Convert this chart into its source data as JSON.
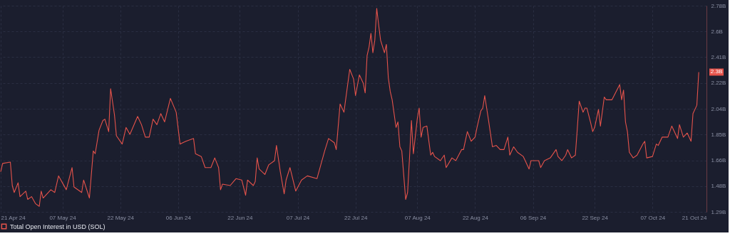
{
  "chart_data": {
    "type": "line",
    "x": [
      "2024-04-21",
      "2024-04-21T12:00",
      "2024-04-23T12:00",
      "2024-04-24",
      "2024-04-24T12:00",
      "2024-04-25T12:00",
      "2024-04-26",
      "2024-04-27T12:00",
      "2024-04-28",
      "2024-04-29",
      "2024-04-30",
      "2024-05-01",
      "2024-05-01T12:00",
      "2024-05-02",
      "2024-05-04",
      "2024-05-05",
      "2024-05-06",
      "2024-05-07",
      "2024-05-08",
      "2024-05-09T12:00",
      "2024-05-10",
      "2024-05-12",
      "2024-05-12T12:00",
      "2024-05-14",
      "2024-05-15",
      "2024-05-15T12:00",
      "2024-05-16T12:00",
      "2024-05-17T12:00",
      "2024-05-18",
      "2024-05-19",
      "2024-05-19T12:00",
      "2024-05-20T12:00",
      "2024-05-21",
      "2024-05-22T12:00",
      "2024-05-23T12:00",
      "2024-05-24T12:00",
      "2024-05-26T12:00",
      "2024-05-27T12:00",
      "2024-05-28T12:00",
      "2024-05-29T12:00",
      "2024-05-30T12:00",
      "2024-05-31T12:00",
      "2024-06-01T12:00",
      "2024-06-02T12:00",
      "2024-06-04",
      "2024-06-05T12:00",
      "2024-06-06T12:00",
      "2024-06-08",
      "2024-06-10",
      "2024-06-10T12:00",
      "2024-06-12",
      "2024-06-13",
      "2024-06-14T12:00",
      "2024-06-15T12:00",
      "2024-06-16T12:00",
      "2024-06-17",
      "2024-06-17T12:00",
      "2024-06-19T12:00",
      "2024-06-21",
      "2024-06-22T12:00",
      "2024-06-23T12:00",
      "2024-06-24",
      "2024-06-25T12:00",
      "2024-06-26",
      "2024-06-26T12:00",
      "2024-06-27",
      "2024-06-28T12:00",
      "2024-06-29T12:00",
      "2024-07-01",
      "2024-07-01T12:00",
      "2024-07-02T12:00",
      "2024-07-03T12:00",
      "2024-07-04",
      "2024-07-05",
      "2024-07-06T12:00",
      "2024-07-08",
      "2024-07-09T12:00",
      "2024-07-12",
      "2024-07-13",
      "2024-07-14",
      "2024-07-15",
      "2024-07-16T12:00",
      "2024-07-17",
      "2024-07-18",
      "2024-07-19",
      "2024-07-20T12:00",
      "2024-07-21T12:00",
      "2024-07-22",
      "2024-07-23",
      "2024-07-24",
      "2024-07-24T12:00",
      "2024-07-25",
      "2024-07-25T12:00",
      "2024-07-26",
      "2024-07-26T12:00",
      "2024-07-27",
      "2024-07-27T12:00",
      "2024-07-28",
      "2024-07-28T12:00",
      "2024-07-29T12:00",
      "2024-07-30",
      "2024-07-30T12:00",
      "2024-07-31",
      "2024-07-31T12:00",
      "2024-08-01T12:00",
      "2024-08-02",
      "2024-08-02T12:00",
      "2024-08-03",
      "2024-08-04",
      "2024-08-04T12:00",
      "2024-08-05",
      "2024-08-05T12:00",
      "2024-08-06",
      "2024-08-07",
      "2024-08-07T12:00",
      "2024-08-08",
      "2024-08-08T12:00",
      "2024-08-09T12:00",
      "2024-08-10T12:00",
      "2024-08-11",
      "2024-08-11T12:00",
      "2024-08-13",
      "2024-08-14",
      "2024-08-14T12:00",
      "2024-08-16",
      "2024-08-17",
      "2024-08-18T12:00",
      "2024-08-19",
      "2024-08-20",
      "2024-08-21",
      "2024-08-22",
      "2024-08-22T12:00",
      "2024-08-23T12:00",
      "2024-08-24",
      "2024-08-24T12:00",
      "2024-08-25",
      "2024-08-25T12:00",
      "2024-08-26T12:00",
      "2024-08-27T12:00",
      "2024-08-28T12:00",
      "2024-08-29T12:00",
      "2024-08-30T12:00",
      "2024-08-31",
      "2024-09-01",
      "2024-09-02",
      "2024-09-03T12:00",
      "2024-09-04",
      "2024-09-05",
      "2024-09-05T12:00",
      "2024-09-07T12:00",
      "2024-09-08",
      "2024-09-09",
      "2024-09-10T12:00",
      "2024-09-12",
      "2024-09-12T12:00",
      "2024-09-13T12:00",
      "2024-09-14T12:00",
      "2024-09-15",
      "2024-09-16",
      "2024-09-17",
      "2024-09-17T12:00",
      "2024-09-18",
      "2024-09-19",
      "2024-09-19T12:00",
      "2024-09-20",
      "2024-09-21",
      "2024-09-21T12:00",
      "2024-09-22",
      "2024-09-23",
      "2024-09-23T12:00",
      "2024-09-24T12:00",
      "2024-09-25",
      "2024-09-26T12:00",
      "2024-09-28T12:00",
      "2024-09-29",
      "2024-09-29T12:00",
      "2024-09-30",
      "2024-09-30T12:00",
      "2024-10-01",
      "2024-10-02",
      "2024-10-03",
      "2024-10-04T12:00",
      "2024-10-05",
      "2024-10-05T12:00",
      "2024-10-07",
      "2024-10-08",
      "2024-10-08T12:00",
      "2024-10-09T12:00",
      "2024-10-11",
      "2024-10-12",
      "2024-10-13T12:00",
      "2024-10-14",
      "2024-10-15",
      "2024-10-16",
      "2024-10-17",
      "2024-10-17T12:00",
      "2024-10-18T12:00",
      "2024-10-19"
    ],
    "series": [
      {
        "name": "Total Open Interest in USD (SOL)",
        "color": "#e5534b",
        "values": [
          1.58,
          1.64,
          1.65,
          1.48,
          1.43,
          1.5,
          1.4,
          1.44,
          1.38,
          1.4,
          1.35,
          1.33,
          1.44,
          1.39,
          1.45,
          1.43,
          1.55,
          1.5,
          1.45,
          1.61,
          1.47,
          1.43,
          1.52,
          1.39,
          1.73,
          1.71,
          1.88,
          1.95,
          1.96,
          1.87,
          2.18,
          1.99,
          1.84,
          1.78,
          1.9,
          1.85,
          1.98,
          1.92,
          1.83,
          1.83,
          1.96,
          1.92,
          2.0,
          1.94,
          2.11,
          2.01,
          1.78,
          1.8,
          1.82,
          1.71,
          1.69,
          1.61,
          1.61,
          1.68,
          1.61,
          1.45,
          1.49,
          1.48,
          1.53,
          1.52,
          1.41,
          1.52,
          1.48,
          1.51,
          1.68,
          1.6,
          1.56,
          1.63,
          1.66,
          1.77,
          1.58,
          1.42,
          1.52,
          1.61,
          1.44,
          1.52,
          1.55,
          1.53,
          1.63,
          1.73,
          1.82,
          1.79,
          1.74,
          2.07,
          2.01,
          2.32,
          2.25,
          2.13,
          2.28,
          2.22,
          2.15,
          2.42,
          2.48,
          2.58,
          2.44,
          2.53,
          2.76,
          2.64,
          2.53,
          2.44,
          2.5,
          2.26,
          2.16,
          2.1,
          1.9,
          1.94,
          1.76,
          1.73,
          1.38,
          1.43,
          1.68,
          1.95,
          1.71,
          1.96,
          2.04,
          1.83,
          1.9,
          1.91,
          1.7,
          1.72,
          1.69,
          1.66,
          1.7,
          1.61,
          1.68,
          1.66,
          1.74,
          1.74,
          1.87,
          1.8,
          1.83,
          1.9,
          2.02,
          2.04,
          2.13,
          2.04,
          1.95,
          1.76,
          1.77,
          1.74,
          1.74,
          1.83,
          1.7,
          1.76,
          1.72,
          1.69,
          1.66,
          1.6,
          1.66,
          1.66,
          1.61,
          1.66,
          1.68,
          1.74,
          1.69,
          1.66,
          1.7,
          1.74,
          1.68,
          1.7,
          1.89,
          2.09,
          2.01,
          2.04,
          2.04,
          1.93,
          1.87,
          1.9,
          2.03,
          1.91,
          2.12,
          2.1,
          2.1,
          2.21,
          2.1,
          2.17,
          1.94,
          1.87,
          1.72,
          1.68,
          1.7,
          1.78,
          1.8,
          1.68,
          1.69,
          1.78,
          1.77,
          1.83,
          1.83,
          1.91,
          1.82,
          1.92,
          1.83,
          1.86,
          1.8,
          2.0,
          2.06,
          2.3
        ]
      }
    ],
    "xlim": [
      "2024-04-21",
      "2024-10-21"
    ],
    "xticks": [
      {
        "value": "2024-04-21",
        "label": "21 Apr 24"
      },
      {
        "value": "2024-05-07",
        "label": "07 May 24"
      },
      {
        "value": "2024-05-22",
        "label": "22 May 24"
      },
      {
        "value": "2024-06-06",
        "label": "06 Jun 24"
      },
      {
        "value": "2024-06-22",
        "label": "22 Jun 24"
      },
      {
        "value": "2024-07-07",
        "label": "07 Jul 24"
      },
      {
        "value": "2024-07-22",
        "label": "22 Jul 24"
      },
      {
        "value": "2024-08-07",
        "label": "07 Aug 24"
      },
      {
        "value": "2024-08-22",
        "label": "22 Aug 24"
      },
      {
        "value": "2024-09-06",
        "label": "06 Sep 24"
      },
      {
        "value": "2024-09-22",
        "label": "22 Sep 24"
      },
      {
        "value": "2024-10-07",
        "label": "07 Oct 24"
      },
      {
        "value": "2024-10-21",
        "label": "21 Oct 24"
      }
    ],
    "ylim": [
      1.29,
      2.78
    ],
    "yticks": [
      {
        "value": 1.29,
        "label": "1.29B"
      },
      {
        "value": 1.47625,
        "label": "1.48B"
      },
      {
        "value": 1.6625,
        "label": "1.66B"
      },
      {
        "value": 1.84875,
        "label": "1.85B"
      },
      {
        "value": 2.035,
        "label": "2.04B"
      },
      {
        "value": 2.22125,
        "label": "2.22B"
      },
      {
        "value": 2.4075,
        "label": "2.41B"
      },
      {
        "value": 2.59375,
        "label": "2.6B"
      },
      {
        "value": 2.78,
        "label": "2.78B"
      }
    ],
    "annotations": [
      {
        "text": "2.3B",
        "x": "2024-10-19",
        "y": 2.3
      }
    ],
    "grid": true,
    "legend": "bottom"
  }
}
